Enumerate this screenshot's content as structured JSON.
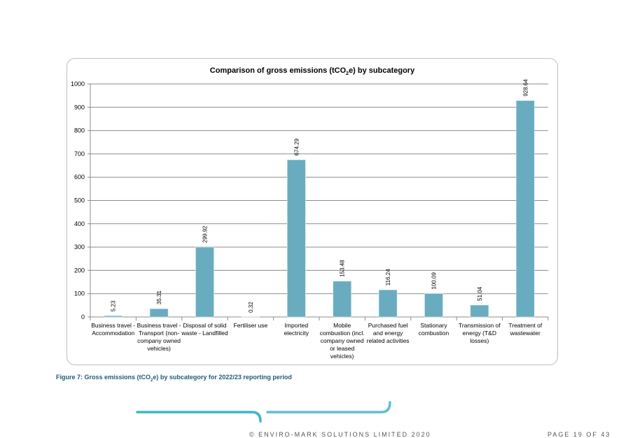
{
  "chart_data": {
    "type": "bar",
    "title": "Comparison of gross emissions (tCO2e) by subcategory",
    "title_parts": {
      "before": "Comparison of gross emissions (tCO",
      "sub": "2",
      "after": "e) by subcategory"
    },
    "xlabel": "",
    "ylabel": "",
    "ylim": [
      0,
      1000
    ],
    "yticks": [
      0,
      100,
      200,
      300,
      400,
      500,
      600,
      700,
      800,
      900,
      1000
    ],
    "grid": true,
    "legend": "none",
    "bar_color": "#6aacbf",
    "categories": [
      [
        "Business travel -",
        "Accommodation"
      ],
      [
        "Business travel -",
        "Transport (non-",
        "company owned",
        "vehicles)"
      ],
      [
        "Disposal of solid",
        "waste - Landfilled"
      ],
      [
        "Fertiliser use"
      ],
      [
        "Imported",
        "electricity"
      ],
      [
        "Mobile",
        "combustion (incl.",
        "company owned",
        "or leased",
        "vehicles)"
      ],
      [
        "Purchased fuel",
        "and energy",
        "related activities"
      ],
      [
        "Stationary",
        "combustion"
      ],
      [
        "Transmission of",
        "energy (T&D",
        "losses)"
      ],
      [
        "Treatment of",
        "wastewater"
      ]
    ],
    "values": [
      5.23,
      35.31,
      299.92,
      0.32,
      674.29,
      153.48,
      116.24,
      100.09,
      51.04,
      928.64
    ],
    "data_labels": [
      "5.23",
      "35.31",
      "299.92",
      "0.32",
      "674.29",
      "153.48",
      "116.24",
      "100.09",
      "51.04",
      "928.64"
    ]
  },
  "caption": {
    "before": "Figure 7: Gross emissions (tCO",
    "sub": "2",
    "after": "e) by subcategory for 2022/23 reporting period"
  },
  "footer": {
    "copyright": "© ENVIRO-MARK SOLUTIONS LIMITED 2020",
    "page": "PAGE 19 OF 43"
  }
}
